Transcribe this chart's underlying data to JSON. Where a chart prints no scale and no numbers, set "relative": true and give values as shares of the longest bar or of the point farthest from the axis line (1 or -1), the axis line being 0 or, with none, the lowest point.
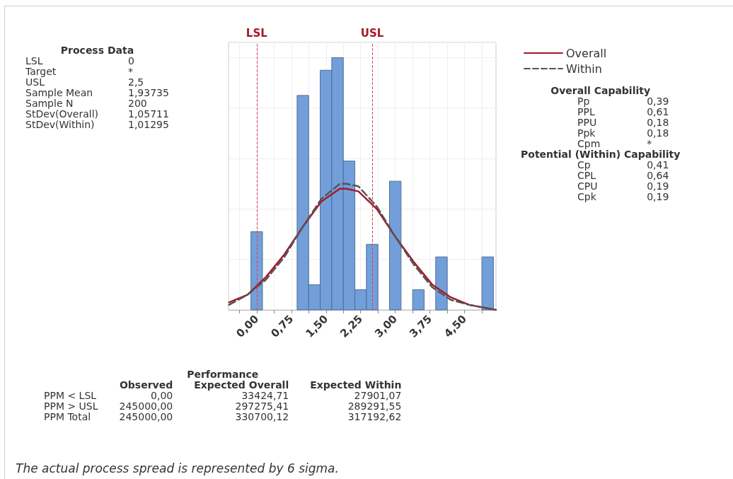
{
  "chart_data": {
    "type": "histogram",
    "bins": [
      -0.125,
      0.125,
      0.375,
      0.625,
      0.875,
      1.125,
      1.375,
      1.625,
      1.875,
      2.125,
      2.375,
      2.625,
      2.875,
      3.125,
      3.375,
      3.625,
      3.875,
      4.125,
      4.375,
      4.625,
      4.875,
      5.125
    ],
    "relative": true,
    "series": [
      {
        "color": "#729fd9",
        "values": [
          0.31,
          0,
          0,
          0,
          0.85,
          0.1,
          0.95,
          1,
          0.59,
          0.08,
          0.26,
          0,
          0.51,
          0,
          0.08,
          0,
          0.21,
          0,
          0,
          0,
          0.21
        ]
      },
      {
        "type": "line",
        "name": "Overall",
        "color": "#a5182a",
        "line_style": "solid",
        "x": [
          -0.6,
          -0.2,
          0.2,
          0.6,
          1.0,
          1.4,
          1.8,
          1.94,
          2.2,
          2.6,
          3.0,
          3.4,
          3.8,
          4.2,
          4.6,
          5.18
        ],
        "values": [
          0.03,
          0.06,
          0.13,
          0.22,
          0.33,
          0.43,
          0.48,
          0.48,
          0.47,
          0.4,
          0.29,
          0.19,
          0.1,
          0.05,
          0.02,
          0
        ]
      },
      {
        "type": "line",
        "name": "Within",
        "color": "#555555",
        "line_style": "dashed",
        "x": [
          -0.6,
          -0.2,
          0.2,
          0.6,
          1.0,
          1.4,
          1.8,
          1.94,
          2.2,
          2.6,
          3.0,
          3.4,
          3.8,
          4.2,
          4.6,
          5.18
        ],
        "values": [
          0.02,
          0.06,
          0.12,
          0.21,
          0.33,
          0.44,
          0.5,
          0.5,
          0.49,
          0.41,
          0.29,
          0.18,
          0.09,
          0.04,
          0.02,
          0
        ]
      }
    ],
    "xlim": [
      -0.61,
      5.18
    ],
    "xticks": [
      {
        "value": -0.375,
        "label": null
      },
      {
        "value": 0,
        "label": "0,00"
      },
      {
        "value": 0.375,
        "label": null
      },
      {
        "value": 0.75,
        "label": "0,75"
      },
      {
        "value": 1.125,
        "label": null
      },
      {
        "value": 1.5,
        "label": "1,50"
      },
      {
        "value": 1.875,
        "label": null
      },
      {
        "value": 2.25,
        "label": "2,25"
      },
      {
        "value": 2.625,
        "label": null
      },
      {
        "value": 3,
        "label": "3,00"
      },
      {
        "value": 3.375,
        "label": null
      },
      {
        "value": 3.75,
        "label": "3,75"
      },
      {
        "value": 4.125,
        "label": null
      },
      {
        "value": 4.5,
        "label": "4,50"
      },
      {
        "value": 4.875,
        "label": null
      }
    ],
    "ref_lines": [
      {
        "axis": "x",
        "value": 0,
        "label": "LSL",
        "color": "#e0405a",
        "line_style": "dashed"
      },
      {
        "axis": "x",
        "value": 2.5,
        "label": "USL",
        "color": "#e0405a",
        "line_style": "dashed"
      }
    ],
    "grid": true,
    "legend": "top right",
    "annotations": [
      "Process Data\nLSL\t0\nTarget\t*\nUSL\t2,5\nSample Mean\t1,93735\nSample N\t200\nStDev(Overall)\t1,05711\nStDev(Within)\t1,01295",
      "Overall Capability\nPp\t0,39\nPPL\t0,61\nPPU\t0,18\nPpk\t0,18\nCpm\t*\nPotential (Within) Capability\nCp\t0,41\nCPL\t0,64\nCPU\t0,19\nCpk\t0,19",
      "Performance\n\tObserved\tExpected Overall\tExpected Within\nPPM < LSL\t0,00\t33424,71\t27901,07\nPPM > USL\t245000,00\t297275,41\t289291,55\nPPM Total\t245000,00\t330700,12\t317192,62",
      "The actual process spread is represented by 6 sigma."
    ]
  }
}
